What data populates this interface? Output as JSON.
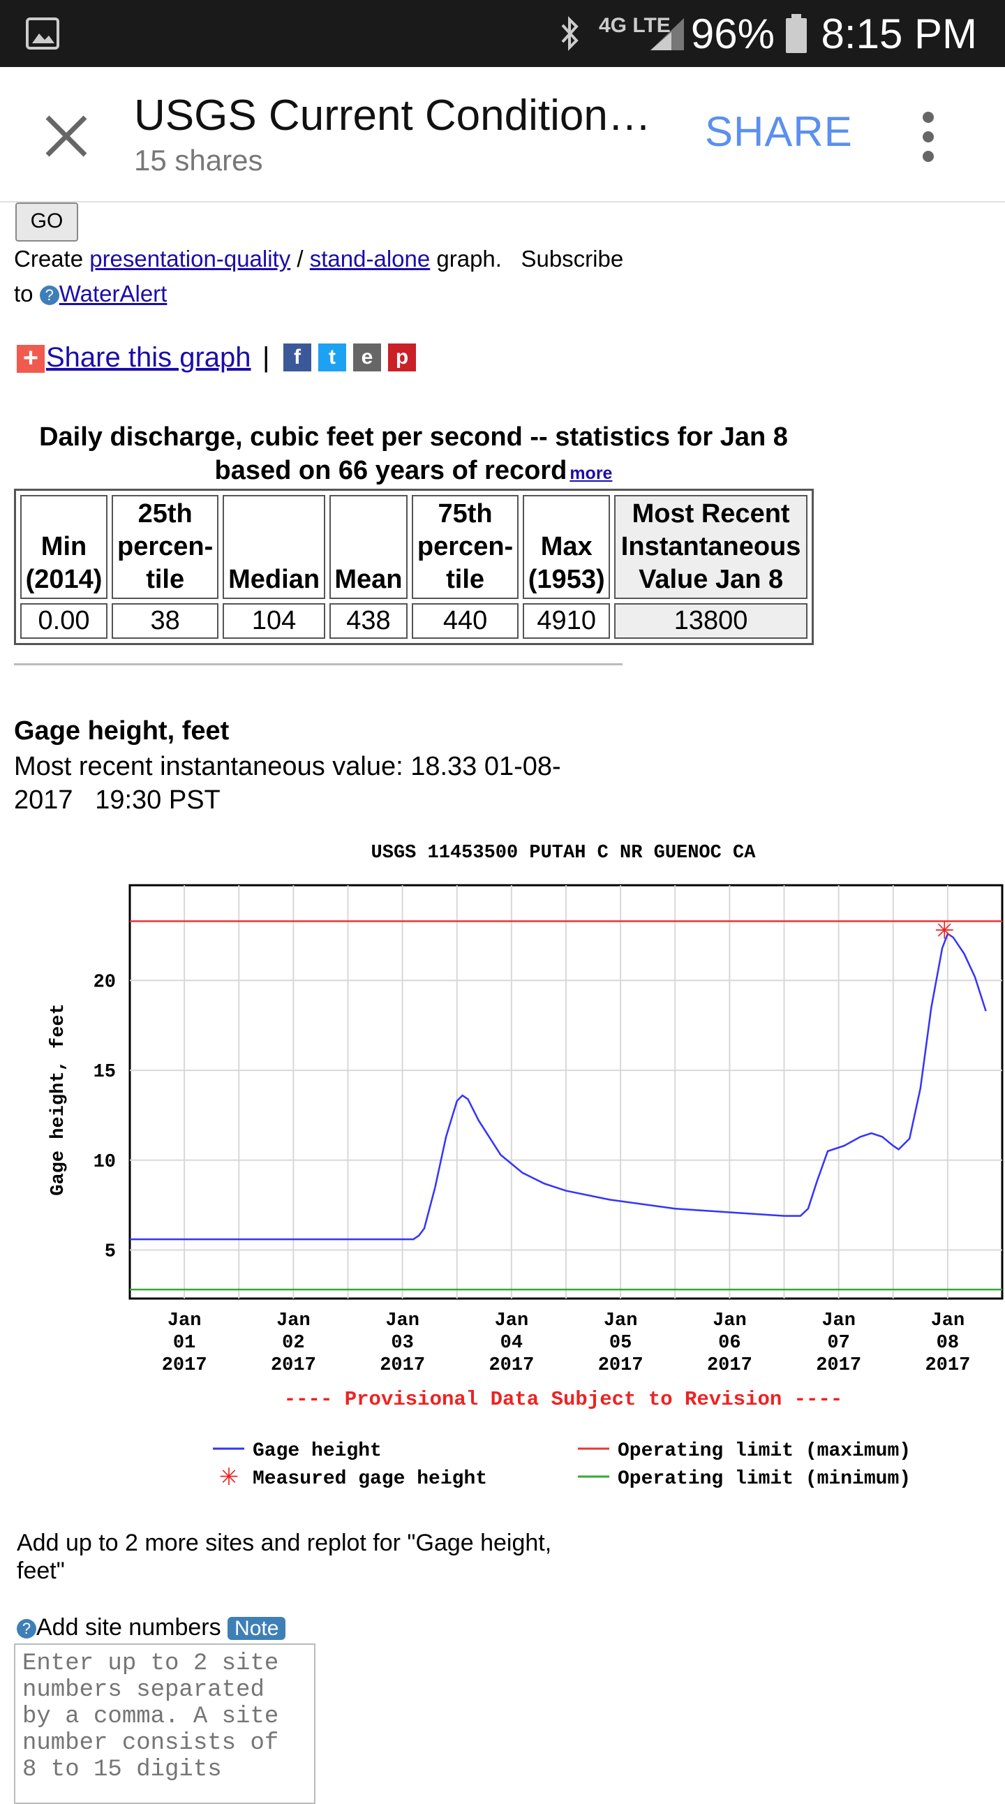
{
  "status_bar": {
    "battery": "96%",
    "time": "8:15 PM",
    "network": "4G LTE",
    "icons": [
      "image-icon",
      "bluetooth-icon",
      "lte-icon",
      "signal-icon",
      "battery-icon"
    ]
  },
  "app_bar": {
    "title": "USGS Current Condition…",
    "subtitle": "15 shares",
    "share_label": "SHARE",
    "icons": [
      "close-icon",
      "more-vert-icon"
    ]
  },
  "page": {
    "go_label": "GO",
    "create_prefix": "Create ",
    "presentation_link": "presentation-quality",
    "slash": " / ",
    "standalone_link": "stand-alone",
    "graph_subscribe": " graph.   Subscribe",
    "to": "to ",
    "wateralert_link": "WaterAlert",
    "share_graph_link": "Share this graph",
    "pipe": "|",
    "social": [
      "f",
      "t",
      "e",
      "p"
    ]
  },
  "stats": {
    "caption_line1": "Daily discharge, cubic feet per second -- statistics for Jan 8",
    "caption_line2": "based on 66 years of record",
    "more_link": "more",
    "headers": [
      "Min\n(2014)",
      "25th\npercen-\ntile",
      "Median",
      "Mean",
      "75th\npercen-\ntile",
      "Max\n(1953)",
      "Most Recent\nInstantaneous\nValue Jan 8"
    ],
    "values": [
      "0.00",
      "38",
      "104",
      "438",
      "440",
      "4910",
      "13800"
    ]
  },
  "gage": {
    "heading": "Gage height, feet",
    "recent_line1": "Most recent instantaneous value: 18.33 01-08-",
    "recent_line2": "2017   19:30 PST"
  },
  "chart_data": {
    "type": "line",
    "title": "USGS 11453500 PUTAH C NR GUENOC CA",
    "ylabel": "Gage height, feet",
    "xlabel": "",
    "x_ticks": [
      [
        "Jan",
        "01",
        "2017"
      ],
      [
        "Jan",
        "02",
        "2017"
      ],
      [
        "Jan",
        "03",
        "2017"
      ],
      [
        "Jan",
        "04",
        "2017"
      ],
      [
        "Jan",
        "05",
        "2017"
      ],
      [
        "Jan",
        "06",
        "2017"
      ],
      [
        "Jan",
        "07",
        "2017"
      ],
      [
        "Jan",
        "08",
        "2017"
      ]
    ],
    "y_ticks": [
      5,
      10,
      15,
      20
    ],
    "xlim": [
      0,
      8.0
    ],
    "ylim": [
      2.3,
      25.3
    ],
    "grid": true,
    "provisional_note": "---- Provisional Data Subject to Revision ----",
    "series": [
      {
        "name": "Gage height",
        "color": "#3333ff",
        "x": [
          0,
          2.0,
          2.5,
          2.6,
          2.65,
          2.7,
          2.8,
          2.9,
          3.0,
          3.05,
          3.1,
          3.2,
          3.4,
          3.6,
          3.8,
          4.0,
          4.4,
          5.0,
          5.5,
          6.0,
          6.15,
          6.22,
          6.3,
          6.4,
          6.55,
          6.7,
          6.8,
          6.9,
          7.0,
          7.05,
          7.15,
          7.25,
          7.35,
          7.45,
          7.5,
          7.55,
          7.65,
          7.75,
          7.85
        ],
        "y": [
          5.6,
          5.6,
          5.6,
          5.6,
          5.8,
          6.2,
          8.5,
          11.3,
          13.3,
          13.6,
          13.4,
          12.2,
          10.3,
          9.3,
          8.7,
          8.3,
          7.8,
          7.3,
          7.1,
          6.9,
          6.9,
          7.3,
          8.8,
          10.5,
          10.8,
          11.3,
          11.5,
          11.3,
          10.8,
          10.6,
          11.2,
          14.0,
          18.5,
          21.8,
          22.6,
          22.4,
          21.5,
          20.2,
          18.3
        ]
      },
      {
        "name": "Operating limit (maximum)",
        "color": "#ee3333",
        "y": 23.3
      },
      {
        "name": "Operating limit (minimum)",
        "color": "#33aa33",
        "y": 2.8
      },
      {
        "name": "Measured gage height",
        "color": "#ee2222",
        "x": [
          7.47
        ],
        "y": [
          22.8
        ]
      }
    ],
    "legend": [
      "Gage height",
      "Measured gage height",
      "Operating limit (maximum)",
      "Operating limit (minimum)"
    ]
  },
  "replot": {
    "line1": "Add up to 2 more sites and replot for \"Gage height,",
    "line2": "feet\"",
    "add_label": "Add site numbers",
    "note_badge": "Note",
    "input_placeholder": "Enter up to 2 site numbers separated by a comma. A site number consists of 8 to 15 digits"
  }
}
